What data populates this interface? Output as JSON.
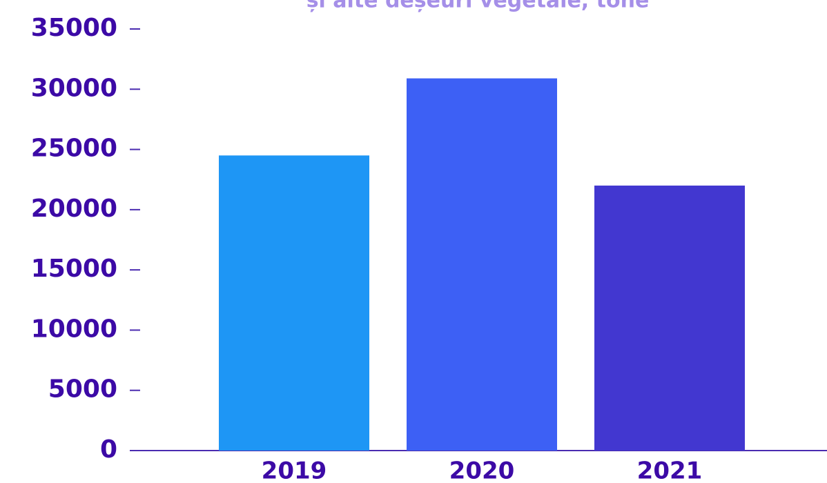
{
  "chart_data": {
    "type": "bar",
    "title": "și alte deșeuri vegetale, tone",
    "categories": [
      "2019",
      "2020",
      "2021"
    ],
    "values": [
      24500,
      30900,
      22000
    ],
    "colors": [
      "#1e96f5",
      "#3d60f5",
      "#4237d0"
    ],
    "ylim": [
      0,
      35000
    ],
    "yticks": [
      0,
      5000,
      10000,
      15000,
      20000,
      25000,
      30000,
      35000
    ],
    "grid": false
  }
}
